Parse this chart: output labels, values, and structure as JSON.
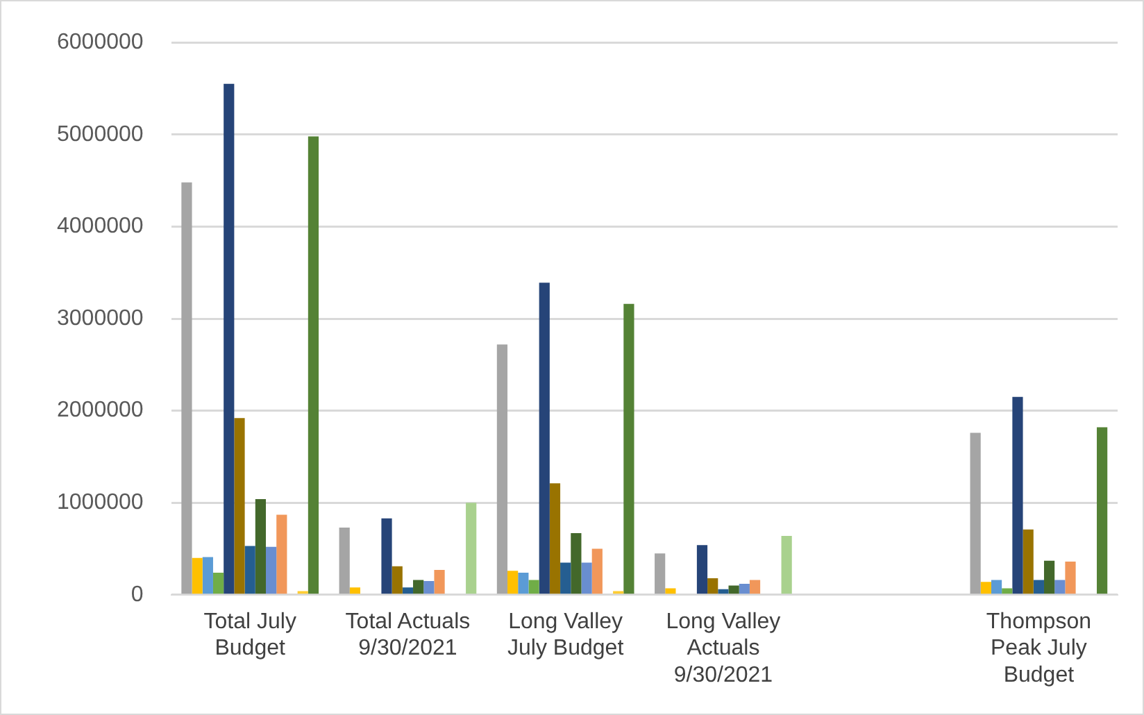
{
  "chart_data": {
    "type": "bar",
    "categories": [
      "Total July Budget",
      "Total Actuals 9/30/2021",
      "Long Valley July Budget",
      "Long Valley Actuals 9/30/2021",
      null,
      "Thompson Peak July Budget"
    ],
    "series": [
      {
        "color": "#a5a5a5",
        "values": [
          4480000,
          730000,
          2720000,
          450000,
          0,
          1760000
        ]
      },
      {
        "color": "#ffc000",
        "values": [
          400000,
          80000,
          260000,
          70000,
          0,
          140000
        ]
      },
      {
        "color": "#5b9bd5",
        "values": [
          410000,
          0,
          240000,
          0,
          0,
          160000
        ]
      },
      {
        "color": "#70ad47",
        "values": [
          240000,
          null,
          160000,
          null,
          0,
          70000
        ]
      },
      {
        "color": "#264478",
        "values": [
          5550000,
          830000,
          3390000,
          540000,
          0,
          2150000
        ]
      },
      {
        "color": "#997300",
        "values": [
          1920000,
          310000,
          1210000,
          180000,
          0,
          710000
        ]
      },
      {
        "color": "#255e91",
        "values": [
          530000,
          80000,
          350000,
          60000,
          0,
          160000
        ]
      },
      {
        "color": "#43682b",
        "values": [
          1040000,
          160000,
          670000,
          100000,
          0,
          370000
        ]
      },
      {
        "color": "#698ed0",
        "values": [
          520000,
          150000,
          350000,
          120000,
          0,
          160000
        ]
      },
      {
        "color": "#f1975a",
        "values": [
          870000,
          270000,
          500000,
          160000,
          0,
          360000
        ]
      },
      {
        "color": "#b7b7b7",
        "values": [
          null,
          0,
          0,
          0,
          0,
          0
        ]
      },
      {
        "color": "#ffcd33",
        "values": [
          40000,
          0,
          40000,
          0,
          0,
          0
        ]
      },
      {
        "colors": [
          "#548235",
          "#a9d18e",
          "#548235",
          "#a9d18e",
          "#548235",
          "#548235"
        ],
        "values": [
          4980000,
          1000000,
          3160000,
          640000,
          0,
          1820000
        ]
      }
    ],
    "ylim": [
      0,
      6000000
    ],
    "yticks": [
      0,
      1000000,
      2000000,
      3000000,
      4000000,
      5000000,
      6000000
    ],
    "grid": "y"
  }
}
